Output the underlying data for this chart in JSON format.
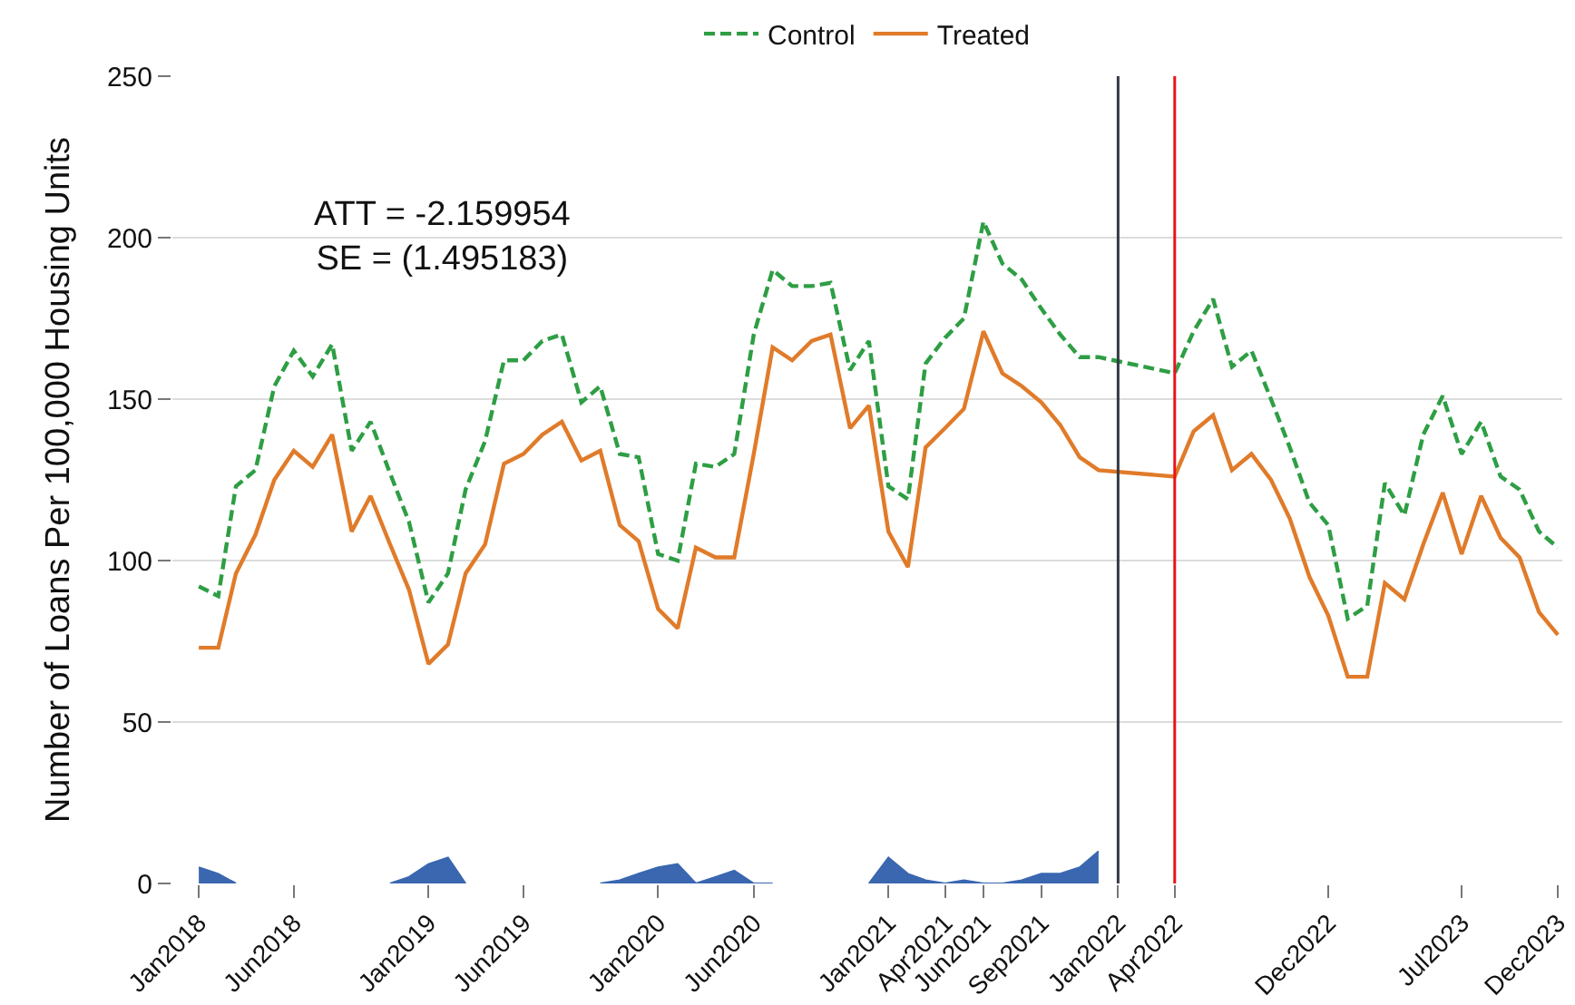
{
  "chart_data": {
    "type": "line",
    "ylabel": "Number of Loans Per 100,000 Housing Units",
    "x": [
      "2018-01",
      "2018-02",
      "2018-03",
      "2018-04",
      "2018-05",
      "2018-06",
      "2018-07",
      "2018-08",
      "2018-09",
      "2018-10",
      "2018-11",
      "2018-12",
      "2019-01",
      "2019-02",
      "2019-03",
      "2019-04",
      "2019-05",
      "2019-06",
      "2019-07",
      "2019-08",
      "2019-09",
      "2019-10",
      "2019-11",
      "2019-12",
      "2020-01",
      "2020-02",
      "2020-03",
      "2020-04",
      "2020-05",
      "2020-06",
      "2020-07",
      "2020-08",
      "2020-09",
      "2020-10",
      "2020-11",
      "2020-12",
      "2021-01",
      "2021-02",
      "2021-03",
      "2021-04",
      "2021-05",
      "2021-06",
      "2021-07",
      "2021-08",
      "2021-09",
      "2021-10",
      "2021-11",
      "2021-12",
      "2022-04",
      "2022-05",
      "2022-06",
      "2022-07",
      "2022-08",
      "2022-09",
      "2022-10",
      "2022-11",
      "2022-12",
      "2023-01",
      "2023-02",
      "2023-03",
      "2023-04",
      "2023-05",
      "2023-06",
      "2023-07",
      "2023-08",
      "2023-09",
      "2023-10",
      "2023-11",
      "2023-12"
    ],
    "series": [
      {
        "name": "Control",
        "color": "#2e9e44",
        "line_style": "dashed",
        "values": [
          92,
          89,
          123,
          128,
          154,
          165,
          157,
          167,
          134,
          143,
          127,
          112,
          87,
          96,
          122,
          137,
          162,
          162,
          168,
          170,
          149,
          154,
          133,
          132,
          102,
          100,
          130,
          129,
          133,
          170,
          190,
          185,
          185,
          186,
          159,
          168,
          123,
          119,
          161,
          169,
          175,
          205,
          192,
          187,
          178,
          170,
          163,
          163,
          158,
          171,
          181,
          160,
          165,
          150,
          135,
          118,
          111,
          82,
          86,
          124,
          114,
          139,
          151,
          133,
          143,
          126,
          122,
          109,
          104
        ]
      },
      {
        "name": "Treated",
        "color": "#e07b2a",
        "line_style": "solid",
        "values": [
          73,
          73,
          96,
          108,
          125,
          134,
          129,
          139,
          109,
          120,
          105,
          91,
          68,
          74,
          96,
          105,
          130,
          133,
          139,
          143,
          131,
          134,
          111,
          106,
          85,
          79,
          104,
          101,
          101,
          133,
          166,
          162,
          168,
          170,
          141,
          148,
          109,
          98,
          135,
          141,
          147,
          171,
          158,
          154,
          149,
          142,
          132,
          128,
          126,
          140,
          145,
          128,
          133,
          125,
          113,
          95,
          83,
          64,
          64,
          93,
          88,
          105,
          121,
          102,
          120,
          107,
          101,
          84,
          77
        ]
      },
      {
        "type": "area",
        "color": "#3a67b0",
        "values": [
          5,
          3,
          0,
          null,
          null,
          null,
          null,
          null,
          null,
          null,
          0,
          2,
          6,
          8,
          0,
          null,
          null,
          null,
          null,
          null,
          null,
          0,
          1,
          3,
          5,
          6,
          0,
          2,
          4,
          0,
          0,
          null,
          null,
          null,
          null,
          0,
          8,
          3,
          1,
          0,
          1,
          0,
          0,
          1,
          3,
          3,
          5,
          10,
          null,
          null,
          null,
          null,
          null,
          null,
          null,
          null,
          null,
          null,
          null,
          null,
          null,
          null,
          null,
          null,
          null,
          null,
          null,
          null,
          null
        ]
      }
    ],
    "xlim": [
      "2017-11-20",
      "2023-12-08"
    ],
    "xticks": [
      {
        "value": "2018-01",
        "label": "Jan2018"
      },
      {
        "value": "2018-06",
        "label": "Jun2018"
      },
      {
        "value": "2019-01",
        "label": "Jan2019"
      },
      {
        "value": "2019-06",
        "label": "Jun2019"
      },
      {
        "value": "2020-01",
        "label": "Jan2020"
      },
      {
        "value": "2020-06",
        "label": "Jun2020"
      },
      {
        "value": "2021-01",
        "label": "Jan2021"
      },
      {
        "value": "2021-04",
        "label": "Apr2021"
      },
      {
        "value": "2021-06",
        "label": "Jun2021"
      },
      {
        "value": "2021-09",
        "label": "Sep2021"
      },
      {
        "value": "2022-01",
        "label": "Jan2022"
      },
      {
        "value": "2022-04",
        "label": "Apr2022"
      },
      {
        "value": "2022-12",
        "label": "Dec2022"
      },
      {
        "value": "2023-07",
        "label": "Jul2023"
      },
      {
        "value": "2023-12",
        "label": "Dec2023"
      }
    ],
    "ylim": [
      0,
      250
    ],
    "yticks": [
      0,
      50,
      100,
      150,
      200,
      250
    ],
    "grid": "y",
    "legend": "top",
    "ref_lines": [
      {
        "axis": "x",
        "value": "2022-01",
        "color": "#343a44"
      },
      {
        "axis": "x",
        "value": "2022-04",
        "color": "#e8141c"
      }
    ],
    "annotations": [
      "ATT = -2.159954\nSE = (1.495183)"
    ]
  }
}
